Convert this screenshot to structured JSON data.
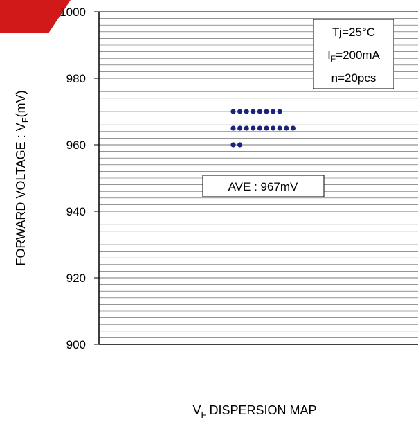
{
  "chart_data": {
    "type": "scatter",
    "title": "",
    "xlabel": "DISPERSION MAP",
    "xlabel_prefix": "V",
    "xlabel_sub": "F",
    "ylabel": "FORWARD VOLTAGE : V",
    "ylabel_sub": "F",
    "ylabel_unit": "(mV)",
    "ylim": [
      900,
      1000
    ],
    "yticks": [
      "900",
      "920",
      "940",
      "960",
      "980",
      "1000"
    ],
    "y_tick_values": [
      900,
      920,
      940,
      960,
      980,
      1000
    ],
    "minor_grid_step": 2,
    "grid": true,
    "legend": {
      "placement": "top-right",
      "line1": "Tj=25°C",
      "line2_prefix": "I",
      "line2_sub": "F",
      "line2_suffix": "=200mA",
      "line3": "n=20pcs"
    },
    "annotation": "AVE : 967mV",
    "marker_color": "#1a237e",
    "groups": [
      {
        "y": 970,
        "count": 8
      },
      {
        "y": 965,
        "count": 10
      },
      {
        "y": 960,
        "count": 2
      }
    ]
  }
}
